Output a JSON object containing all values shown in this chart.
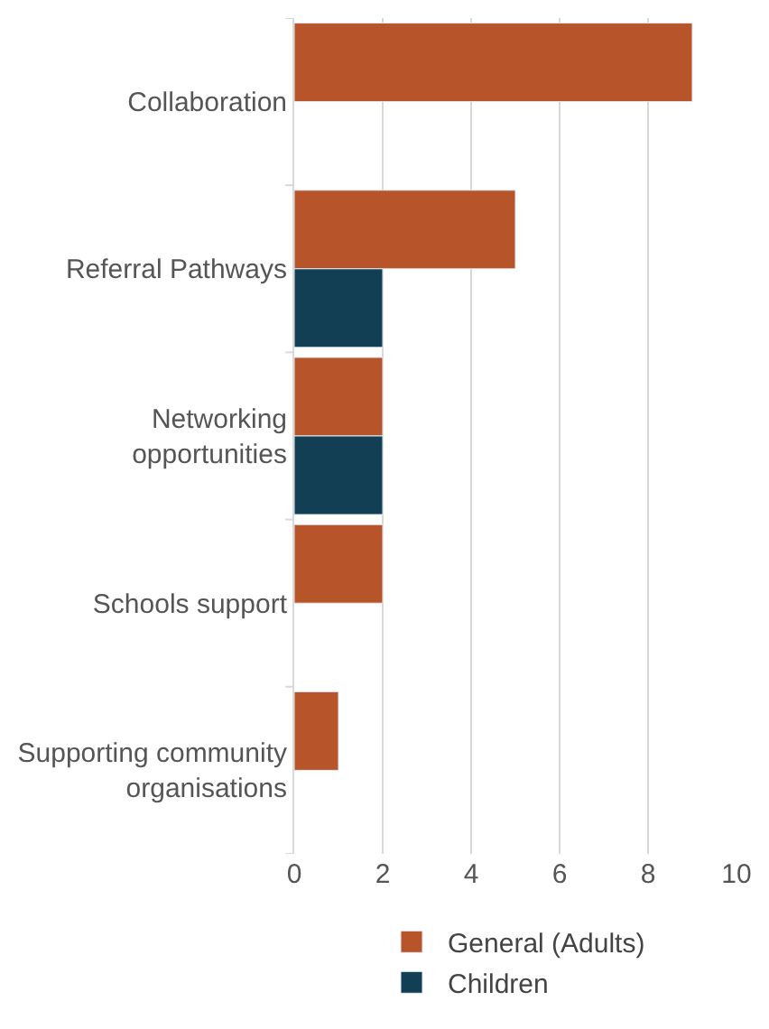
{
  "chart_data": {
    "type": "bar",
    "orientation": "horizontal",
    "categories": [
      "Collaboration",
      "Referral Pathways",
      "Networking opportunities",
      "Schools support",
      "Supporting community organisations"
    ],
    "series": [
      {
        "name": "General (Adults)",
        "color": "#b85429",
        "values": [
          9,
          5,
          2,
          2,
          1
        ]
      },
      {
        "name": "Children",
        "color": "#133f55",
        "values": [
          null,
          2,
          2,
          null,
          null
        ]
      }
    ],
    "xlim": [
      0,
      10
    ],
    "xticks": [
      0,
      2,
      4,
      6,
      8,
      10
    ],
    "grid": "x",
    "legend": "bottom"
  }
}
